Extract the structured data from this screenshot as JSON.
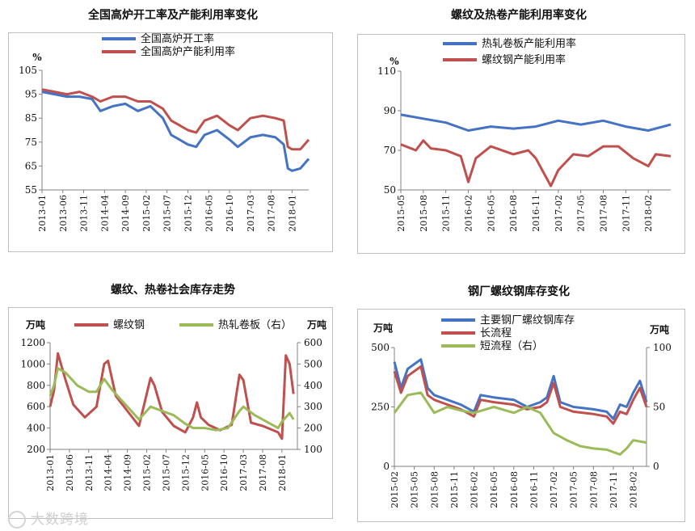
{
  "chart_data": [
    {
      "type": "line",
      "title": "全国高炉开工率及产能利用率变化",
      "ylabel": "%",
      "ylim": [
        55,
        105
      ],
      "yticks": [
        55,
        65,
        75,
        85,
        95,
        105
      ],
      "x_ticks": [
        "2013-01",
        "2013-06",
        "2013-11",
        "2014-04",
        "2014-09",
        "2015-02",
        "2015-07",
        "2015-12",
        "2016-05",
        "2016-10",
        "2017-03",
        "2017-08",
        "2018-01"
      ],
      "x_range": [
        "2013-01",
        "2018-05"
      ],
      "legend_position": "top-left",
      "grid": false,
      "series": [
        {
          "name": "全国高炉开工率",
          "color": "#4472c4",
          "x": [
            "2013-01",
            "2013-04",
            "2013-07",
            "2013-10",
            "2014-01",
            "2014-03",
            "2014-06",
            "2014-09",
            "2014-12",
            "2015-03",
            "2015-06",
            "2015-08",
            "2015-10",
            "2015-12",
            "2016-02",
            "2016-04",
            "2016-07",
            "2016-10",
            "2016-12",
            "2017-03",
            "2017-06",
            "2017-09",
            "2017-11",
            "2017-12",
            "2018-01",
            "2018-03",
            "2018-05"
          ],
          "values": [
            96,
            95,
            94,
            94,
            93,
            88,
            90,
            91,
            88,
            90,
            85,
            78,
            76,
            74,
            73,
            78,
            80,
            76,
            73,
            77,
            78,
            77,
            74,
            64,
            63,
            64,
            68
          ]
        },
        {
          "name": "全国高炉产能利用率",
          "color": "#c0504d",
          "x": [
            "2013-01",
            "2013-04",
            "2013-07",
            "2013-10",
            "2014-01",
            "2014-03",
            "2014-06",
            "2014-09",
            "2014-12",
            "2015-03",
            "2015-06",
            "2015-08",
            "2015-10",
            "2015-12",
            "2016-02",
            "2016-04",
            "2016-07",
            "2016-10",
            "2016-12",
            "2017-03",
            "2017-06",
            "2017-09",
            "2017-11",
            "2017-12",
            "2018-01",
            "2018-03",
            "2018-05"
          ],
          "values": [
            97,
            96,
            95,
            96,
            94,
            92,
            94,
            94,
            92,
            92,
            89,
            84,
            82,
            80,
            79,
            84,
            86,
            82,
            80,
            85,
            86,
            85,
            84,
            73,
            72,
            72,
            76
          ]
        }
      ]
    },
    {
      "type": "line",
      "title": "螺纹及热卷产能利用率变化",
      "ylabel": "%",
      "ylim": [
        50,
        110
      ],
      "yticks": [
        50,
        70,
        90,
        110
      ],
      "x_ticks": [
        "2015-05",
        "2015-08",
        "2015-11",
        "2016-02",
        "2016-05",
        "2016-08",
        "2016-11",
        "2017-02",
        "2017-05",
        "2017-08",
        "2017-11",
        "2018-02"
      ],
      "x_range": [
        "2015-05",
        "2018-05"
      ],
      "legend_position": "top-left",
      "grid": false,
      "series": [
        {
          "name": "热轧卷板产能利用率",
          "color": "#4472c4",
          "x": [
            "2015-05",
            "2015-08",
            "2015-11",
            "2016-02",
            "2016-05",
            "2016-08",
            "2016-11",
            "2017-02",
            "2017-05",
            "2017-08",
            "2017-11",
            "2018-02",
            "2018-05"
          ],
          "values": [
            88,
            86,
            84,
            80,
            82,
            81,
            82,
            85,
            83,
            85,
            82,
            80,
            83
          ]
        },
        {
          "name": "螺纹钢产能利用率",
          "color": "#c0504d",
          "x": [
            "2015-05",
            "2015-07",
            "2015-08",
            "2015-09",
            "2015-11",
            "2016-01",
            "2016-02",
            "2016-03",
            "2016-05",
            "2016-08",
            "2016-10",
            "2016-11",
            "2017-01",
            "2017-02",
            "2017-04",
            "2017-06",
            "2017-08",
            "2017-10",
            "2017-12",
            "2018-02",
            "2018-03",
            "2018-05"
          ],
          "values": [
            73,
            70,
            75,
            71,
            70,
            67,
            54,
            66,
            72,
            68,
            70,
            66,
            52,
            60,
            68,
            67,
            72,
            72,
            66,
            62,
            68,
            67
          ]
        }
      ]
    },
    {
      "type": "line",
      "title": "螺纹、热卷社会库存走势",
      "ylabel": "万吨",
      "ylabel_right": "万吨",
      "ylim": [
        200,
        1200
      ],
      "yticks": [
        200,
        400,
        600,
        800,
        1000,
        1200
      ],
      "ylim_right": [
        100,
        600
      ],
      "yticks_right": [
        100,
        200,
        300,
        400,
        500,
        600
      ],
      "x_ticks": [
        "2013-01",
        "2013-06",
        "2013-11",
        "2014-04",
        "2014-09",
        "2015-02",
        "2015-07",
        "2015-12",
        "2016-05",
        "2016-10",
        "2017-03",
        "2017-08",
        "2018-01"
      ],
      "x_range": [
        "2013-01",
        "2018-05"
      ],
      "legend_position": "top",
      "grid": false,
      "series": [
        {
          "name": "螺纹钢",
          "color": "#c0504d",
          "axis": "left",
          "x": [
            "2013-01",
            "2013-02",
            "2013-03",
            "2013-05",
            "2013-07",
            "2013-10",
            "2014-01",
            "2014-03",
            "2014-04",
            "2014-06",
            "2014-09",
            "2014-12",
            "2015-03",
            "2015-04",
            "2015-06",
            "2015-09",
            "2015-12",
            "2016-02",
            "2016-03",
            "2016-04",
            "2016-06",
            "2016-09",
            "2016-12",
            "2017-02",
            "2017-03",
            "2017-05",
            "2017-08",
            "2017-12",
            "2018-01",
            "2018-02",
            "2018-03",
            "2018-04"
          ],
          "values": [
            600,
            750,
            1100,
            850,
            620,
            500,
            600,
            1000,
            1030,
            700,
            560,
            420,
            870,
            800,
            550,
            420,
            360,
            500,
            640,
            500,
            430,
            380,
            430,
            900,
            850,
            450,
            420,
            360,
            300,
            1080,
            1000,
            720
          ]
        },
        {
          "name": "热轧卷板（右）",
          "color": "#9bbb59",
          "axis": "right",
          "x": [
            "2013-01",
            "2013-02",
            "2013-03",
            "2013-05",
            "2013-08",
            "2013-11",
            "2014-01",
            "2014-03",
            "2014-05",
            "2014-08",
            "2014-12",
            "2015-03",
            "2015-06",
            "2015-09",
            "2015-12",
            "2016-02",
            "2016-05",
            "2016-08",
            "2016-11",
            "2017-02",
            "2017-03",
            "2017-06",
            "2017-09",
            "2017-12",
            "2018-01",
            "2018-03",
            "2018-04"
          ],
          "values": [
            350,
            400,
            480,
            460,
            400,
            370,
            370,
            430,
            380,
            320,
            240,
            300,
            280,
            260,
            220,
            200,
            200,
            190,
            200,
            280,
            300,
            260,
            230,
            200,
            230,
            270,
            240
          ]
        }
      ]
    },
    {
      "type": "line",
      "title": "钢厂螺纹钢库存变化",
      "ylabel": "万吨",
      "ylabel_right": "万吨",
      "ylim": [
        0,
        500
      ],
      "yticks": [
        0,
        250,
        500
      ],
      "ylim_right": [
        0,
        100
      ],
      "yticks_right": [
        0,
        50,
        100
      ],
      "x_ticks": [
        "2015-02",
        "2015-05",
        "2015-08",
        "2015-11",
        "2016-02",
        "2016-05",
        "2016-08",
        "2016-11",
        "2017-02",
        "2017-05",
        "2017-08",
        "2017-11",
        "2018-02"
      ],
      "x_range": [
        "2015-02",
        "2018-04"
      ],
      "legend_position": "top",
      "grid": false,
      "series": [
        {
          "name": "主要钢厂螺纹钢库存",
          "color": "#4472c4",
          "axis": "left",
          "x": [
            "2015-02",
            "2015-03",
            "2015-04",
            "2015-06",
            "2015-07",
            "2015-08",
            "2015-10",
            "2015-12",
            "2016-02",
            "2016-03",
            "2016-05",
            "2016-08",
            "2016-10",
            "2016-12",
            "2017-01",
            "2017-02",
            "2017-03",
            "2017-05",
            "2017-08",
            "2017-10",
            "2017-11",
            "2017-12",
            "2018-01",
            "2018-02",
            "2018-03",
            "2018-04"
          ],
          "values": [
            440,
            330,
            410,
            450,
            330,
            300,
            280,
            260,
            230,
            300,
            290,
            280,
            250,
            270,
            290,
            380,
            270,
            250,
            240,
            230,
            200,
            260,
            250,
            310,
            360,
            270
          ]
        },
        {
          "name": "长流程",
          "color": "#c0504d",
          "axis": "left",
          "x": [
            "2015-02",
            "2015-03",
            "2015-04",
            "2015-06",
            "2015-07",
            "2015-08",
            "2015-10",
            "2015-12",
            "2016-02",
            "2016-03",
            "2016-05",
            "2016-08",
            "2016-10",
            "2016-12",
            "2017-01",
            "2017-02",
            "2017-03",
            "2017-05",
            "2017-08",
            "2017-10",
            "2017-11",
            "2017-12",
            "2018-01",
            "2018-02",
            "2018-03",
            "2018-04"
          ],
          "values": [
            400,
            310,
            380,
            420,
            300,
            280,
            260,
            240,
            210,
            280,
            270,
            260,
            240,
            250,
            270,
            350,
            250,
            230,
            220,
            210,
            180,
            230,
            220,
            280,
            330,
            250
          ]
        },
        {
          "name": "短流程（右）",
          "color": "#9bbb59",
          "axis": "right",
          "x": [
            "2015-02",
            "2015-04",
            "2015-06",
            "2015-08",
            "2015-10",
            "2015-12",
            "2016-02",
            "2016-05",
            "2016-08",
            "2016-10",
            "2016-12",
            "2017-02",
            "2017-04",
            "2017-06",
            "2017-08",
            "2017-10",
            "2017-12",
            "2018-01",
            "2018-02",
            "2018-04"
          ],
          "values": [
            45,
            60,
            62,
            45,
            50,
            47,
            45,
            50,
            45,
            50,
            45,
            28,
            22,
            17,
            15,
            14,
            10,
            15,
            22,
            20
          ]
        }
      ]
    }
  ],
  "watermark": "大数跨境"
}
